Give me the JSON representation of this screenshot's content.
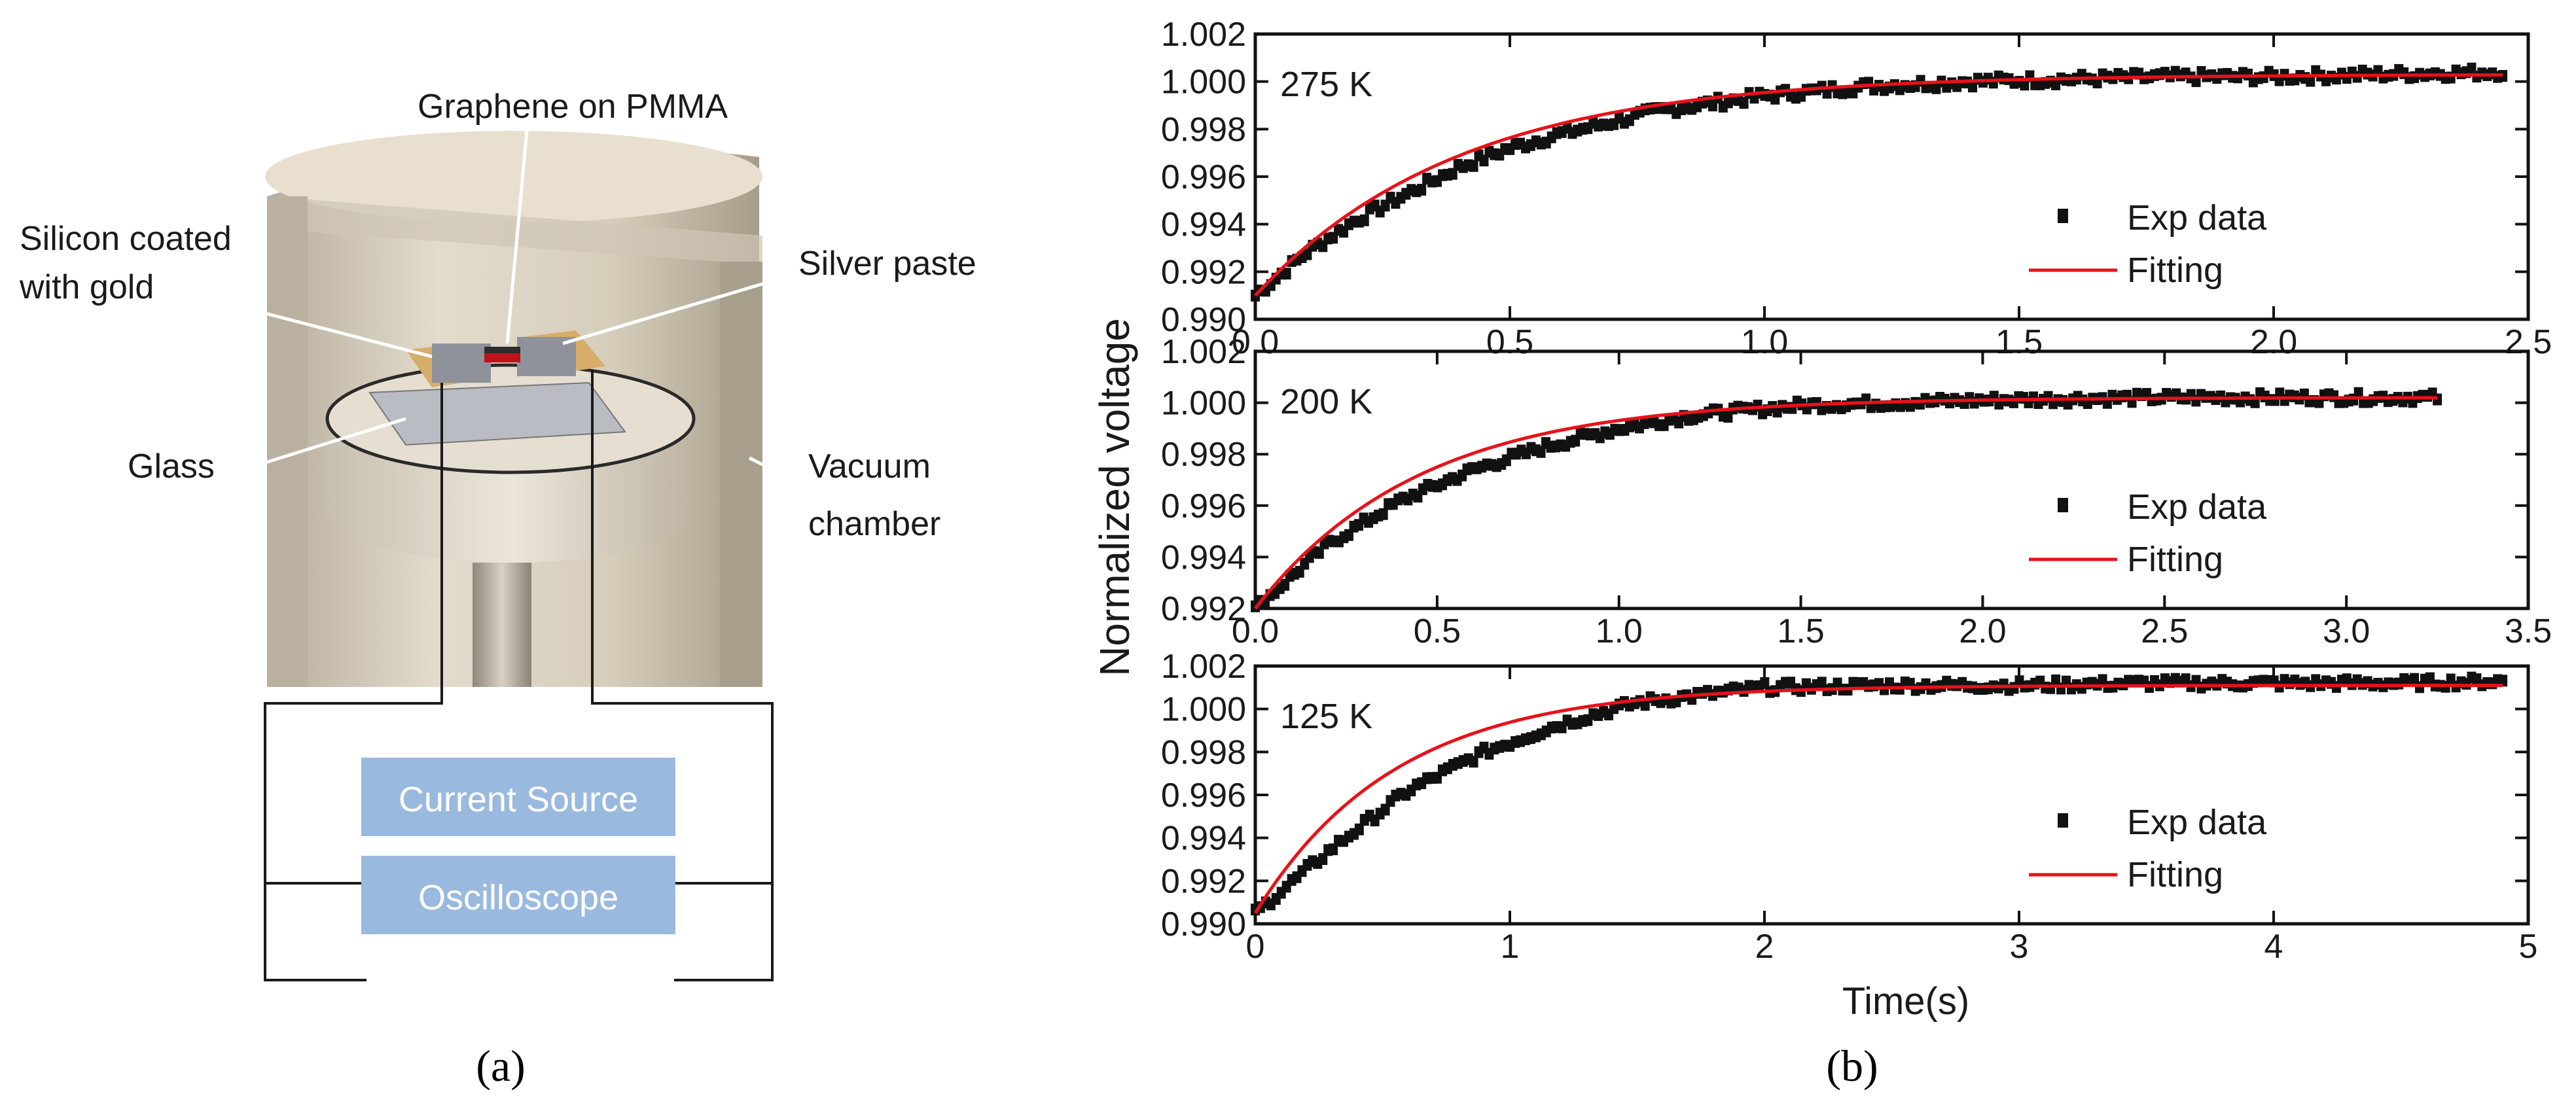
{
  "panel_a": {
    "labels": {
      "graphene": "Graphene on PMMA",
      "silicon_line1": "Silicon coated",
      "silicon_line2": "with gold",
      "silver": "Silver paste",
      "glass": "Glass",
      "vacuum_line1": "Vacuum",
      "vacuum_line2": "chamber"
    },
    "boxes": {
      "current_source": "Current Source",
      "oscilloscope": "Oscilloscope"
    },
    "caption": "(a)"
  },
  "panel_b": {
    "caption": "(b)"
  },
  "chart_data": [
    {
      "type": "line",
      "annotation": "275 K",
      "xlim": [
        0,
        2.5
      ],
      "ylim": [
        0.99,
        1.002
      ],
      "x_ticks": [
        "0.0",
        "0.5",
        "1.0",
        "1.5",
        "2.0",
        "2.5"
      ],
      "y_ticks": [
        "0.990",
        "0.992",
        "0.994",
        "0.996",
        "0.998",
        "1.000",
        "1.002"
      ],
      "legend": [
        "Exp data",
        "Fitting"
      ],
      "legend_position": "bottom-right",
      "x_end": 2.45,
      "series": [
        {
          "name": "Exp data",
          "x": [
            0,
            0.1,
            0.2,
            0.3,
            0.4,
            0.5,
            0.6,
            0.7,
            0.8,
            0.9,
            1.0,
            1.2,
            1.4,
            1.6,
            1.8,
            2.0,
            2.2,
            2.45
          ],
          "y": [
            0.991,
            0.9928,
            0.9942,
            0.9953,
            0.9964,
            0.9972,
            0.9978,
            0.9983,
            0.9988,
            0.9991,
            0.9994,
            0.9998,
            1.0,
            1.0001,
            1.0002,
            1.0002,
            1.0003,
            1.0004
          ]
        },
        {
          "name": "Fitting",
          "y0": 0.991,
          "y_inf": 1.0003,
          "tau": 0.4
        }
      ]
    },
    {
      "type": "line",
      "annotation": "200 K",
      "xlim": [
        0,
        3.5
      ],
      "ylim": [
        0.992,
        1.002
      ],
      "x_ticks": [
        "0.0",
        "0.5",
        "1.0",
        "1.5",
        "2.0",
        "2.5",
        "3.0",
        "3.5"
      ],
      "y_ticks": [
        "0.992",
        "0.994",
        "0.996",
        "0.998",
        "1.000",
        "1.002"
      ],
      "legend": [
        "Exp data",
        "Fitting"
      ],
      "legend_position": "bottom-right",
      "x_end": 3.25,
      "series": [
        {
          "name": "Exp data",
          "x": [
            0,
            0.2,
            0.4,
            0.6,
            0.8,
            1.0,
            1.2,
            1.5,
            2.0,
            2.5,
            3.0,
            3.25
          ],
          "y": [
            0.992,
            0.9945,
            0.9962,
            0.9974,
            0.9983,
            0.999,
            0.9995,
            0.9999,
            1.0001,
            1.0002,
            1.0002,
            1.0002
          ]
        },
        {
          "name": "Fitting",
          "y0": 0.992,
          "y_inf": 1.0002,
          "tau": 0.45
        }
      ]
    },
    {
      "type": "line",
      "annotation": "125 K",
      "xlim": [
        0,
        5
      ],
      "ylim": [
        0.99,
        1.002
      ],
      "x_ticks": [
        "0",
        "1",
        "2",
        "3",
        "4",
        "5"
      ],
      "y_ticks": [
        "0.990",
        "0.992",
        "0.994",
        "0.996",
        "0.998",
        "1.000",
        "1.002"
      ],
      "legend": [
        "Exp data",
        "Fitting"
      ],
      "legend_position": "bottom-right",
      "x_end": 4.9,
      "series": [
        {
          "name": "Exp data",
          "x": [
            0,
            0.3,
            0.6,
            0.9,
            1.2,
            1.5,
            2.0,
            2.5,
            3.0,
            3.5,
            4.0,
            4.5,
            4.9
          ],
          "y": [
            0.9905,
            0.9935,
            0.9962,
            0.998,
            0.9993,
            1.0003,
            1.001,
            1.0011,
            1.0011,
            1.0012,
            1.0012,
            1.0012,
            1.0013
          ]
        },
        {
          "name": "Fitting",
          "y0": 0.9905,
          "y_inf": 1.0011,
          "tau": 0.55
        }
      ]
    }
  ],
  "axes_common": {
    "xlabel": "Time(s)",
    "ylabel": "Normalized voltage"
  },
  "colors": {
    "exp": "#111111",
    "fit": "#e8121a",
    "box": "#9ab9df",
    "box_text": "#ffffff"
  }
}
